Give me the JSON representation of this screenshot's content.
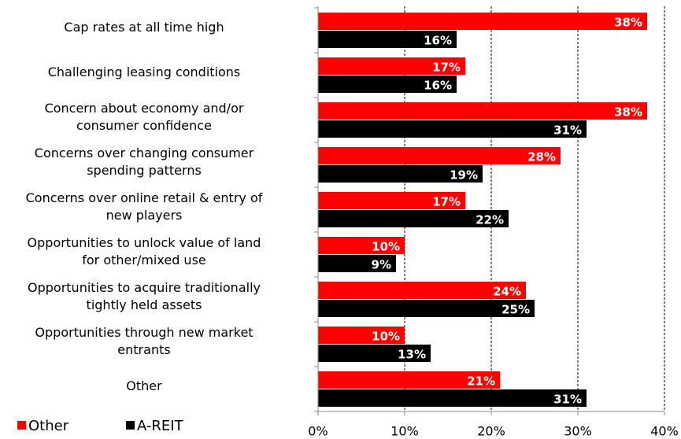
{
  "chart_data": {
    "type": "bar",
    "orientation": "horizontal",
    "categories": [
      "Cap rates at all time high",
      "Challenging leasing conditions",
      "Concern about economy and/or\nconsumer confidence",
      "Concerns over changing consumer\nspending patterns",
      "Concerns over online  retail & entry of\nnew players",
      "Opportunities to unlock value of land\nfor other/mixed use",
      "Opportunities to acquire traditionally\ntightly held assets",
      "Opportunities through new market\nentrants",
      "Other"
    ],
    "series": [
      {
        "name": "Other",
        "color": "#ff0000",
        "values": [
          38,
          17,
          38,
          28,
          17,
          10,
          24,
          10,
          21
        ],
        "value_labels": [
          "38%",
          "17%",
          "38%",
          "28%",
          "17%",
          "10%",
          "24%",
          "10%",
          "21%"
        ]
      },
      {
        "name": "A-REIT",
        "color": "#000000",
        "values": [
          16,
          16,
          31,
          19,
          22,
          9,
          25,
          13,
          31
        ],
        "value_labels": [
          "16%",
          "16%",
          "31%",
          "19%",
          "22%",
          "9%",
          "25%",
          "13%",
          "31%"
        ]
      }
    ],
    "xlim": [
      0,
      40
    ],
    "xticks": [
      {
        "value": 0,
        "label": "0%"
      },
      {
        "value": 10,
        "label": "10%"
      },
      {
        "value": 20,
        "label": "20%"
      },
      {
        "value": 30,
        "label": "30%"
      },
      {
        "value": 40,
        "label": "40%"
      }
    ],
    "grid": true,
    "legend": "bottom-left"
  }
}
